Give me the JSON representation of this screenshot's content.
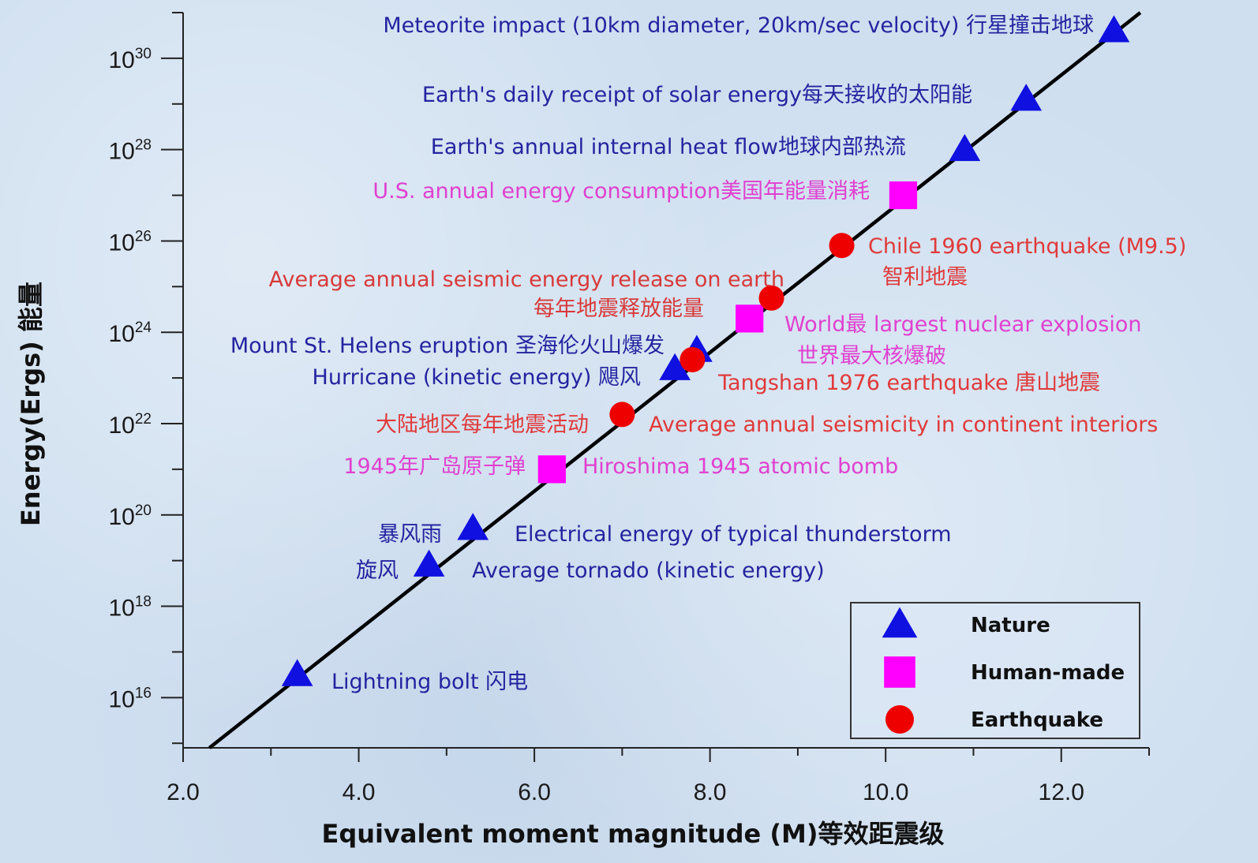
{
  "chart_data": {
    "type": "scatter",
    "title": "",
    "xlabel": "Equivalent moment magnitude (M)等效距震级",
    "ylabel": "Energy(Ergs) 能量",
    "xlim": [
      2.0,
      13.0
    ],
    "ylim_log10": [
      14.9,
      31.0
    ],
    "y_scale": "log",
    "x_ticks": [
      {
        "value": 2.0,
        "label": "2.0"
      },
      {
        "value": 4.0,
        "label": "4.0"
      },
      {
        "value": 6.0,
        "label": "6.0"
      },
      {
        "value": 8.0,
        "label": "8.0"
      },
      {
        "value": 10.0,
        "label": "10.0"
      },
      {
        "value": 12.0,
        "label": "12.0"
      }
    ],
    "y_ticks": [
      {
        "exp": 16,
        "base": "10",
        "sup": "16"
      },
      {
        "exp": 18,
        "base": "10",
        "sup": "18"
      },
      {
        "exp": 20,
        "base": "10",
        "sup": "20"
      },
      {
        "exp": 22,
        "base": "10",
        "sup": "22"
      },
      {
        "exp": 24,
        "base": "10",
        "sup": "24"
      },
      {
        "exp": 26,
        "base": "10",
        "sup": "26"
      },
      {
        "exp": 28,
        "base": "10",
        "sup": "28"
      },
      {
        "exp": 30,
        "base": "10",
        "sup": "30"
      }
    ],
    "line": {
      "x": [
        2.3,
        12.9
      ],
      "log10_y": [
        14.9,
        31.0
      ]
    },
    "grid": false,
    "legend": {
      "position": "bottom-right",
      "entries": [
        {
          "label": "Nature",
          "marker": "triangle",
          "color": "#1010e0"
        },
        {
          "label": "Human-made",
          "marker": "square",
          "color": "#ff00ff"
        },
        {
          "label": "Earthquake",
          "marker": "circle",
          "color": "#ee0000"
        }
      ]
    },
    "series": [
      {
        "name": "Nature",
        "marker": "triangle",
        "color": "#1010e0",
        "points": [
          {
            "x": 3.3,
            "log10_y": 16.5,
            "label": "Lightning bolt 闪电"
          },
          {
            "x": 4.8,
            "log10_y": 18.9,
            "label": "Average tornado (kinetic energy)",
            "label2": "旋风"
          },
          {
            "x": 5.3,
            "log10_y": 19.7,
            "label": "Electrical energy of typical thunderstorm",
            "label2": "暴风雨"
          },
          {
            "x": 7.6,
            "log10_y": 23.2,
            "label": "Hurricane (kinetic energy) 飓风"
          },
          {
            "x": 7.85,
            "log10_y": 23.6,
            "label": "Mount St. Helens eruption 圣海伦火山爆发"
          },
          {
            "x": 10.9,
            "log10_y": 28.0,
            "label": "Earth's annual internal heat flow地球内部热流"
          },
          {
            "x": 11.6,
            "log10_y": 29.1,
            "label": "Earth's daily receipt of solar energy每天接收的太阳能"
          },
          {
            "x": 12.6,
            "log10_y": 30.6,
            "label": "Meteorite impact (10km diameter, 20km/sec velocity) 行星撞击地球"
          }
        ]
      },
      {
        "name": "Human-made",
        "marker": "square",
        "color": "#ff00ff",
        "points": [
          {
            "x": 6.2,
            "log10_y": 21.0,
            "label": "Hiroshima 1945 atomic bomb",
            "label2": "1945年广岛原子弹"
          },
          {
            "x": 8.45,
            "log10_y": 24.3,
            "label": "World最 largest nuclear explosion",
            "label2": "世界最大核爆破"
          },
          {
            "x": 10.2,
            "log10_y": 27.0,
            "label": "U.S. annual energy consumption美国年能量消耗"
          }
        ]
      },
      {
        "name": "Earthquake",
        "marker": "circle",
        "color": "#ee0000",
        "points": [
          {
            "x": 7.0,
            "log10_y": 22.2,
            "label": "Average annual seismicity in continent interiors",
            "label2": "大陆地区每年地震活动"
          },
          {
            "x": 7.8,
            "log10_y": 23.4,
            "label": "Tangshan 1976 earthquake 唐山地震"
          },
          {
            "x": 8.7,
            "log10_y": 24.75,
            "label": "Average annual seismic energy release on earth",
            "label2": "每年地震释放能量"
          },
          {
            "x": 9.5,
            "log10_y": 25.9,
            "label": "Chile 1960 earthquake (M9.5)",
            "label2": "智利地震"
          }
        ]
      }
    ]
  }
}
